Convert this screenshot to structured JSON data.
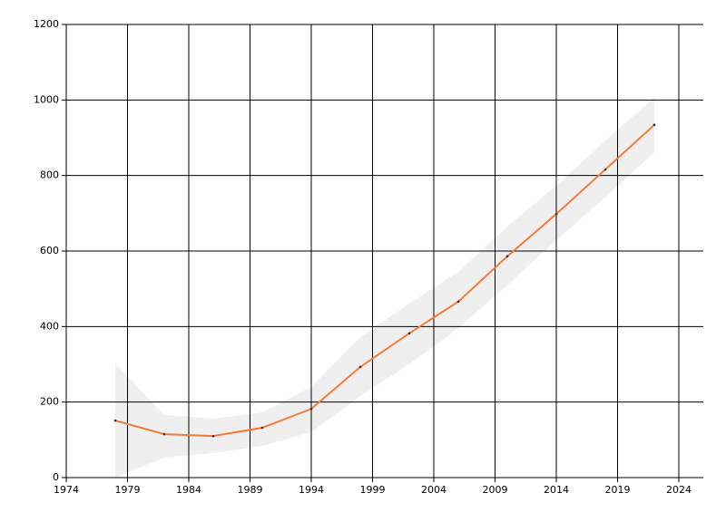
{
  "chart_data": {
    "type": "line",
    "x": [
      1978,
      1982,
      1986,
      1990,
      1994,
      1998,
      2002,
      2006,
      2010,
      2014,
      2018,
      2022
    ],
    "series": [
      {
        "color": "#f47a3b",
        "band_color": "#efefef",
        "values": [
          151,
          115,
          110,
          132,
          182,
          293,
          382,
          466,
          586,
          698,
          816,
          934
        ],
        "lower": [
          0,
          53,
          65,
          84,
          120,
          216,
          300,
          396,
          509,
          629,
          742,
          862
        ],
        "upper": [
          302,
          166,
          156,
          173,
          240,
          372,
          461,
          545,
          665,
          773,
          893,
          1006
        ]
      }
    ],
    "xlim": [
      1974,
      2026
    ],
    "xticks": [
      1974,
      1979,
      1984,
      1989,
      1994,
      1999,
      2004,
      2009,
      2014,
      2019,
      2024
    ],
    "ylim": [
      0,
      1200
    ],
    "yticks": [
      0,
      200,
      400,
      600,
      800,
      1000,
      1200
    ],
    "grid": true
  }
}
